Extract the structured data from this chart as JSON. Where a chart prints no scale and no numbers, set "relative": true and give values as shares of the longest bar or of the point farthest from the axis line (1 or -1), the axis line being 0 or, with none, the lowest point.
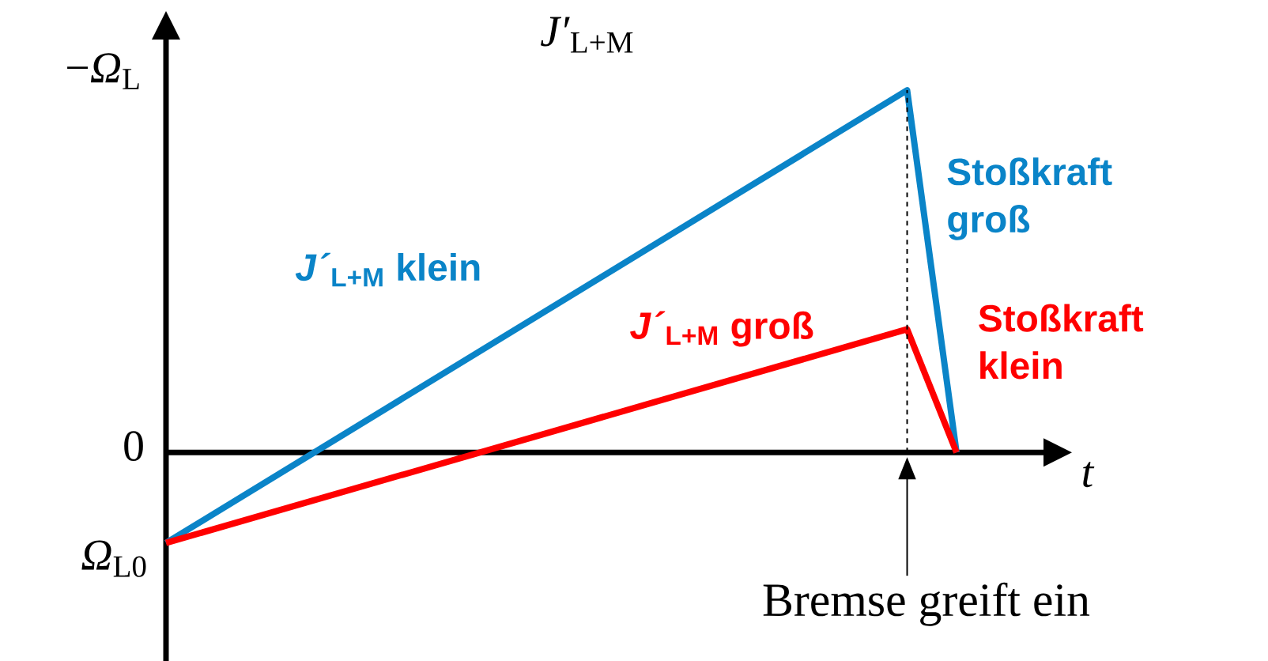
{
  "chart_data": {
    "type": "line",
    "relative": true,
    "xlabel": "*t*",
    "ylabel": "−*Ω*$_{L}$",
    "categories": [
      null,
      null,
      null,
      null,
      null,
      null,
      null,
      null,
      null,
      null,
      null,
      null,
      null,
      null,
      null,
      null,
      null
    ],
    "series": [
      {
        "name": "*J´*$_{L+M}$ klein",
        "color": "#0a84c8",
        "values": [
          -0.25,
          null,
          null,
          null,
          null,
          null,
          null,
          null,
          null,
          null,
          null,
          null,
          null,
          null,
          null,
          1,
          0
        ]
      },
      {
        "name": "*J´*$_{L+M}$ groß",
        "color": "#ff0000",
        "values": [
          -0.25,
          null,
          null,
          null,
          null,
          null,
          null,
          null,
          null,
          null,
          null,
          null,
          null,
          null,
          null,
          0.34,
          0
        ]
      }
    ],
    "annotations": [
      "*J′*$_{L+M}$",
      "0",
      "*Ω*$_{L0}$",
      "Stoßkraft groß",
      "Stoßkraft klein",
      "Bremse greift ein"
    ]
  }
}
